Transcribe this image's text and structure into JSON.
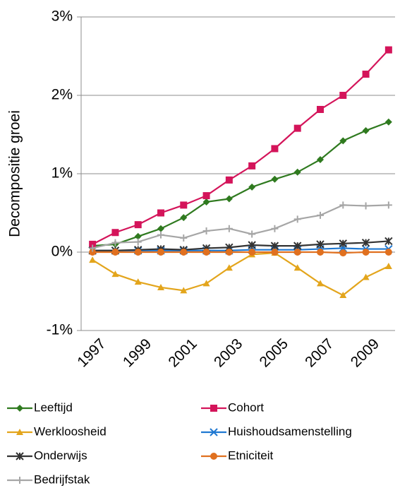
{
  "chart_data": {
    "type": "line",
    "y_label": "Decompositie groei",
    "x": [
      1997,
      1998,
      1999,
      2000,
      2001,
      2002,
      2003,
      2004,
      2005,
      2006,
      2007,
      2008,
      2009,
      2010
    ],
    "xlim": [
      1996.5,
      2010.5
    ],
    "xticks": [
      1997,
      1999,
      2001,
      2003,
      2005,
      2007,
      2009
    ],
    "ylim": [
      -1,
      3
    ],
    "yticks": [
      {
        "value": -1,
        "label": "-1%"
      },
      {
        "value": 0,
        "label": "0%"
      },
      {
        "value": 1,
        "label": "1%"
      },
      {
        "value": 2,
        "label": "2%"
      },
      {
        "value": 3,
        "label": "3%"
      }
    ],
    "grid": true,
    "legend": "bottom",
    "series": [
      {
        "name": "Leeftijd",
        "color": "#2f7a1f",
        "marker": "diamond",
        "values": [
          0.08,
          0.1,
          0.2,
          0.3,
          0.44,
          0.64,
          0.68,
          0.83,
          0.93,
          1.02,
          1.18,
          1.42,
          1.55,
          1.66
        ]
      },
      {
        "name": "Cohort",
        "color": "#d4145a",
        "marker": "square",
        "values": [
          0.1,
          0.25,
          0.35,
          0.5,
          0.6,
          0.72,
          0.92,
          1.1,
          1.32,
          1.58,
          1.82,
          2.0,
          2.27,
          2.58
        ]
      },
      {
        "name": "Werkloosheid",
        "color": "#e3a51c",
        "marker": "triangle",
        "values": [
          -0.1,
          -0.28,
          -0.38,
          -0.45,
          -0.49,
          -0.4,
          -0.2,
          -0.03,
          -0.01,
          -0.2,
          -0.4,
          -0.55,
          -0.32,
          -0.18
        ]
      },
      {
        "name": "Huishoudsamenstelling",
        "color": "#1f78d1",
        "marker": "cross",
        "values": [
          0.02,
          0.02,
          0.02,
          0.02,
          0.02,
          0.02,
          0.02,
          0.03,
          0.03,
          0.03,
          0.04,
          0.05,
          0.04,
          0.04
        ]
      },
      {
        "name": "Onderwijs",
        "color": "#333333",
        "marker": "star",
        "values": [
          0.02,
          0.02,
          0.03,
          0.04,
          0.03,
          0.05,
          0.06,
          0.09,
          0.08,
          0.08,
          0.1,
          0.11,
          0.12,
          0.14
        ]
      },
      {
        "name": "Etniciteit",
        "color": "#e0701f",
        "marker": "circle",
        "values": [
          0,
          0,
          0,
          0,
          0,
          0,
          0,
          0,
          0,
          0,
          0,
          -0.01,
          0,
          0
        ]
      },
      {
        "name": "Bedrijfstak",
        "color": "#a6a6a6",
        "marker": "plus",
        "values": [
          0.05,
          0.12,
          0.13,
          0.22,
          0.18,
          0.27,
          0.3,
          0.23,
          0.3,
          0.42,
          0.47,
          0.6,
          0.59,
          0.6
        ]
      }
    ]
  }
}
